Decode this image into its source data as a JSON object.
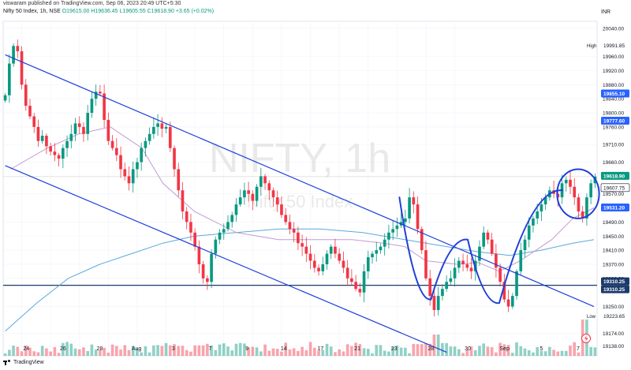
{
  "header": {
    "publisher": "viswaram published on TradingView.com, Sep 06, 2023 20:49 UTC+5:30",
    "symbol": "Nifty 50 Index, 1h, NSE",
    "ohlc": {
      "o": "O19615.00",
      "h": "H19636.45",
      "l": "L19605.55",
      "c": "C19618.90"
    },
    "change": "+3.65 (+0.02%)",
    "currency": "INR"
  },
  "footer": {
    "brand": "TradingView"
  },
  "colors": {
    "up": "#089981",
    "down": "#f23645",
    "trend": "#1f3fd8",
    "sma_blue": "#5aa9dc",
    "sma_purple": "#c39bd3",
    "support": "#1b3a6b",
    "label_blue": "#2962ff"
  },
  "chart_data": {
    "type": "candlestick",
    "watermark_symbol": "NIFTY, 1h",
    "watermark_desc": "Nifty 50 Index",
    "ylim": [
      19110,
      20060
    ],
    "y_ticks": [
      20040.0,
      19960.0,
      19920.0,
      19880.0,
      19840.0,
      19800.0,
      19760.0,
      19710.0,
      19660.0,
      19570.0,
      19490.0,
      19450.0,
      19410.0,
      19370.0,
      19330.0,
      19250.0,
      19174.0,
      19138.0
    ],
    "x_ticks": [
      {
        "label": "24",
        "bar": 4
      },
      {
        "label": "26",
        "bar": 11
      },
      {
        "label": "28",
        "bar": 18
      },
      {
        "label": "Aug",
        "bar": 25
      },
      {
        "label": "3",
        "bar": 32
      },
      {
        "label": "7",
        "bar": 39
      },
      {
        "label": "9",
        "bar": 46
      },
      {
        "label": "14",
        "bar": 53
      },
      {
        "label": "17",
        "bar": 60
      },
      {
        "label": "21",
        "bar": 67
      },
      {
        "label": "23",
        "bar": 74
      },
      {
        "label": "28",
        "bar": 81
      },
      {
        "label": "30",
        "bar": 88
      },
      {
        "label": "Sep",
        "bar": 95
      },
      {
        "label": "5",
        "bar": 102
      },
      {
        "label": "7",
        "bar": 109
      }
    ],
    "price_labels": [
      {
        "text": "High",
        "value": 19991.85,
        "label": "19991.85",
        "style": "plain"
      },
      {
        "text": "",
        "value": 19855.1,
        "label": "19855.10",
        "style": "blue"
      },
      {
        "text": "",
        "value": 19777.6,
        "label": "19777.60",
        "style": "blue"
      },
      {
        "text": "",
        "value": 19618.9,
        "label": "19618.90",
        "style": "green"
      },
      {
        "text": "",
        "value": 19607.75,
        "label": "19607.75",
        "style": "outline"
      },
      {
        "text": "",
        "value": 19531.2,
        "label": "19531.20",
        "style": "blue"
      },
      {
        "text": "",
        "value": 19310.25,
        "label": "19310.25",
        "style": "navy"
      },
      {
        "text": "",
        "value": 19310.25,
        "label": "19310.25",
        "style": "navy2"
      },
      {
        "text": "Low",
        "value": 19223.65,
        "label": "19223.65",
        "style": "plain"
      }
    ],
    "horizontal_lines": [
      {
        "value": 19618.9,
        "color": "#c8c8c8",
        "width": 0.6
      },
      {
        "value": 19310.25,
        "color": "#1b3a6b",
        "width": 1.2
      }
    ],
    "closes": [
      19850,
      19940,
      19990,
      19975,
      19880,
      19820,
      19790,
      19760,
      19720,
      19735,
      19705,
      19690,
      19680,
      19670,
      19700,
      19720,
      19740,
      19770,
      19760,
      19740,
      19800,
      19840,
      19860,
      19855,
      19780,
      19720,
      19700,
      19680,
      19640,
      19620,
      19600,
      19640,
      19660,
      19700,
      19720,
      19740,
      19760,
      19770,
      19755,
      19760,
      19700,
      19640,
      19580,
      19520,
      19490,
      19460,
      19420,
      19370,
      19330,
      19320,
      19400,
      19440,
      19460,
      19470,
      19490,
      19510,
      19540,
      19560,
      19580,
      19570,
      19550,
      19590,
      19620,
      19600,
      19580,
      19560,
      19540,
      19510,
      19490,
      19470,
      19460,
      19430,
      19420,
      19400,
      19380,
      19360,
      19350,
      19370,
      19400,
      19420,
      19400,
      19380,
      19360,
      19330,
      19320,
      19300,
      19290,
      19350,
      19390,
      19400,
      19410,
      19420,
      19440,
      19460,
      19470,
      19480,
      19490,
      19500,
      19560,
      19540,
      19470,
      19410,
      19330,
      19280,
      19240,
      19280,
      19300,
      19320,
      19330,
      19360,
      19380,
      19370,
      19360,
      19350,
      19380,
      19420,
      19460,
      19440,
      19400,
      19360,
      19320,
      19270,
      19250,
      19280,
      19350,
      19410,
      19440,
      19480,
      19500,
      19520,
      19540,
      19560,
      19580,
      19570,
      19560,
      19600,
      19610,
      19590,
      19560,
      19520,
      19500,
      19560,
      19600,
      19619
    ],
    "sma_purple": [
      {
        "bar": 1,
        "value": 19640
      },
      {
        "bar": 8,
        "value": 19700
      },
      {
        "bar": 14,
        "value": 19740
      },
      {
        "bar": 20,
        "value": 19760
      },
      {
        "bar": 26,
        "value": 19700
      },
      {
        "bar": 30,
        "value": 19600
      },
      {
        "bar": 36,
        "value": 19520
      },
      {
        "bar": 44,
        "value": 19460
      },
      {
        "bar": 52,
        "value": 19440
      },
      {
        "bar": 58,
        "value": 19440
      },
      {
        "bar": 66,
        "value": 19440
      },
      {
        "bar": 72,
        "value": 19430
      },
      {
        "bar": 76,
        "value": 19420
      },
      {
        "bar": 80,
        "value": 19380
      },
      {
        "bar": 86,
        "value": 19370
      },
      {
        "bar": 90,
        "value": 19375
      },
      {
        "bar": 94,
        "value": 19350
      },
      {
        "bar": 98,
        "value": 19380
      },
      {
        "bar": 104,
        "value": 19440
      },
      {
        "bar": 108,
        "value": 19500
      },
      {
        "bar": 112,
        "value": 19530
      }
    ],
    "sma_blue": [
      {
        "bar": 0,
        "value": 19180
      },
      {
        "bar": 6,
        "value": 19260
      },
      {
        "bar": 12,
        "value": 19330
      },
      {
        "bar": 18,
        "value": 19370
      },
      {
        "bar": 24,
        "value": 19400
      },
      {
        "bar": 30,
        "value": 19430
      },
      {
        "bar": 36,
        "value": 19450
      },
      {
        "bar": 44,
        "value": 19460
      },
      {
        "bar": 52,
        "value": 19470
      },
      {
        "bar": 60,
        "value": 19470
      },
      {
        "bar": 68,
        "value": 19460
      },
      {
        "bar": 76,
        "value": 19440
      },
      {
        "bar": 84,
        "value": 19420
      },
      {
        "bar": 90,
        "value": 19405
      },
      {
        "bar": 96,
        "value": 19395
      },
      {
        "bar": 102,
        "value": 19410
      },
      {
        "bar": 108,
        "value": 19430
      },
      {
        "bar": 112,
        "value": 19440
      }
    ],
    "trendlines": [
      {
        "from": {
          "bar": 0,
          "value": 19965
        },
        "to": {
          "bar": 112,
          "value": 19250
        }
      },
      {
        "from": {
          "bar": 0,
          "value": 19650
        },
        "to": {
          "bar": 84,
          "value": 19120
        }
      }
    ],
    "drawn_pattern": [
      {
        "bar": 75,
        "value": 19560
      },
      {
        "bar": 81,
        "value": 19270
      },
      {
        "bar": 88,
        "value": 19440
      },
      {
        "bar": 94,
        "value": 19260
      },
      {
        "bar": 106,
        "value": 19580
      }
    ],
    "ellipse": {
      "bar_center": 109,
      "value_center": 19570,
      "bar_radius": 1.6,
      "value_radius": 70
    },
    "volume_scale_max": 100,
    "volume_note": "relative heights only"
  }
}
